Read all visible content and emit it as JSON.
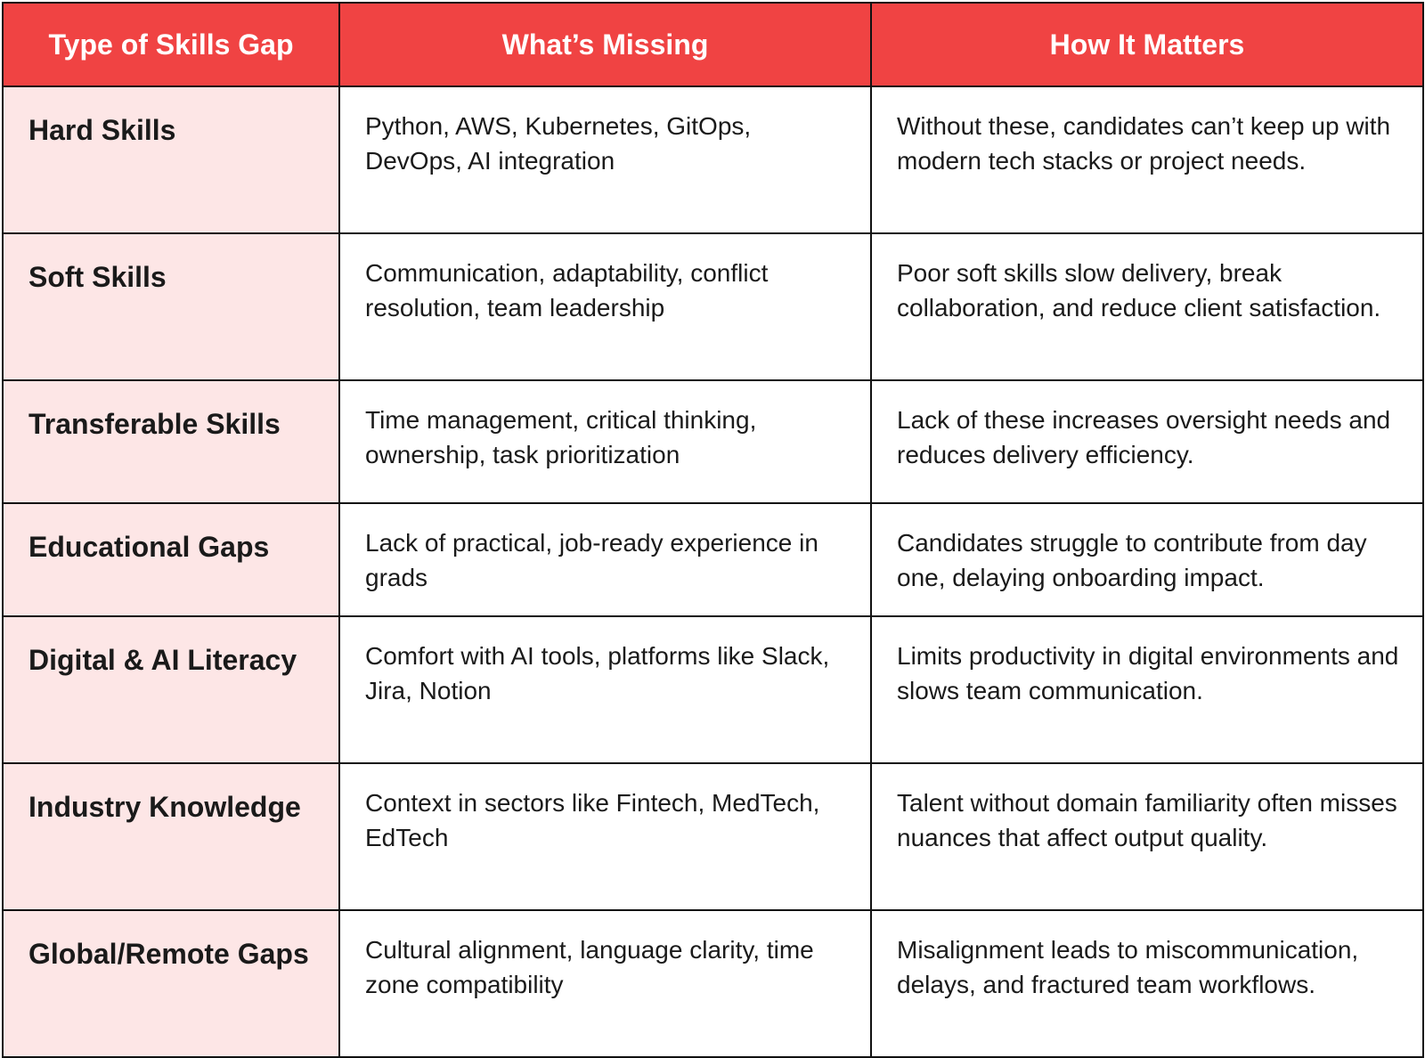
{
  "colors": {
    "header_bg": "#f04343",
    "header_text": "#ffffff",
    "type_column_bg": "#fde6e6",
    "border": "#111111"
  },
  "table": {
    "headers": [
      "Type of Skills Gap",
      "What’s Missing",
      "How It Matters"
    ],
    "rows": [
      {
        "type": "Hard Skills",
        "missing": "Python, AWS, Kubernetes, GitOps, DevOps, AI integration",
        "matters": "Without these, candidates can’t keep up with modern tech stacks or project needs."
      },
      {
        "type": "Soft Skills",
        "missing": "Communication, adaptability, conflict resolution, team leadership",
        "matters": "Poor soft skills slow delivery, break collaboration, and reduce client satisfaction."
      },
      {
        "type": "Transferable Skills",
        "missing": "Time management, critical thinking, ownership, task prioritization",
        "matters": "Lack of these increases oversight needs and reduces delivery efficiency."
      },
      {
        "type": "Educational Gaps",
        "missing": "Lack of practical, job-ready experience in grads",
        "matters": "Candidates struggle to contribute from day one, delaying onboarding impact."
      },
      {
        "type": "Digital & AI Literacy",
        "missing": "Comfort with AI tools, platforms like Slack, Jira, Notion",
        "matters": "Limits productivity in digital environments and slows team communication."
      },
      {
        "type": "Industry Knowledge",
        "missing": "Context in sectors like Fintech, MedTech, EdTech",
        "matters": "Talent without domain familiarity often misses nuances that affect output quality."
      },
      {
        "type": "Global/Remote Gaps",
        "missing": "Cultural alignment, language clarity, time zone compatibility",
        "matters": "Misalignment leads to miscommunication, delays, and fractured team workflows."
      }
    ]
  }
}
